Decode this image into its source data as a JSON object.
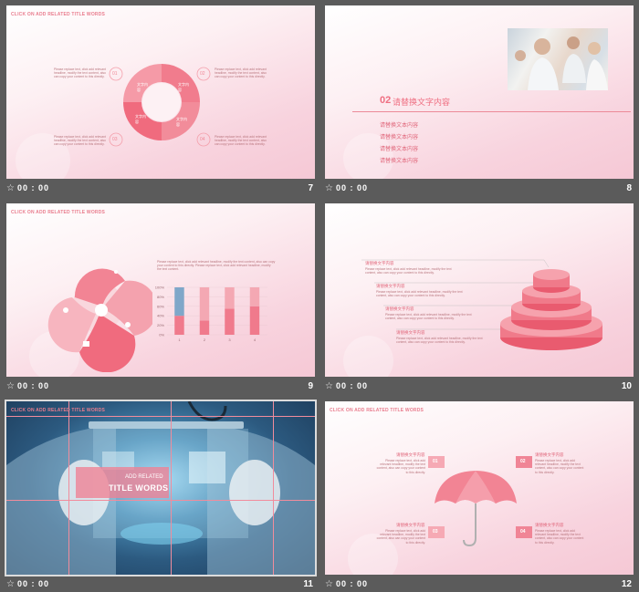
{
  "slides": [
    {
      "num": "7",
      "time": "00 : 00",
      "header": "CLICK ON ADD RELATED TITLE WORDS",
      "markers": [
        "01",
        "02",
        "03",
        "04"
      ],
      "segment_text": [
        "文字内容",
        "文字内容",
        "文字内容",
        "文字内容"
      ],
      "desc": "Please replace text, click add relevant headline, modify the text content, also can copy your content to this directly."
    },
    {
      "num": "8",
      "time": "00 : 00",
      "title_num": "02",
      "title": "请替换文字内容",
      "items": [
        "请替换文本内容",
        "请替换文本内容",
        "请替换文本内容",
        "请替换文本内容"
      ]
    },
    {
      "num": "9",
      "time": "00 : 00",
      "header": "CLICK ON ADD RELATED TITLE WORDS",
      "desc": "Please replace text, click add relevant headline, modify the text content, also can copy your content to this directly. Please replace text, click add relevant headline, modify the text content.",
      "chart_data": {
        "type": "bar",
        "categories": [
          "1",
          "2",
          "3",
          "4"
        ],
        "ylim": [
          0,
          100
        ],
        "yticks": [
          "0%",
          "20%",
          "40%",
          "60%",
          "80%",
          "100%"
        ],
        "series": [
          {
            "values": [
              40,
              30,
              55,
              60
            ]
          },
          {
            "values": [
              60,
              70,
              45,
              40
            ]
          }
        ]
      }
    },
    {
      "num": "10",
      "time": "00 : 00",
      "items": [
        {
          "title": "请替换文字内容",
          "text": "Please replace text, click add relevant headline, modify the text content, also can copy your content to this directly."
        },
        {
          "title": "请替换文字内容",
          "text": "Please replace text, click add relevant headline, modify the text content, also can copy your content to this directly."
        },
        {
          "title": "请替换文字内容",
          "text": "Please replace text, click add relevant headline, modify the text content, also can copy your content to this directly."
        },
        {
          "title": "请替换文字内容",
          "text": "Please replace text, click add relevant headline, modify the text content, also can copy your content to this directly."
        }
      ]
    },
    {
      "num": "11",
      "time": "00 : 00",
      "header": "CLICK ON ADD RELATED TITLE WORDS",
      "overlay_top": "ADD RELATED",
      "overlay_main": "TITLE WORDS"
    },
    {
      "num": "12",
      "time": "00 : 00",
      "header": "CLICK ON ADD RELATED TITLE WORDS",
      "markers": [
        "01",
        "02",
        "03",
        "04"
      ],
      "titles": [
        "请替换文字内容",
        "请替换文字内容",
        "请替换文字内容",
        "请替换文字内容"
      ],
      "desc": "Please replace text, click add relevant headline, modify the text content, also can copy your content to this directly."
    }
  ],
  "colors": {
    "accent": "#e97d8e",
    "pink_dark": "#f06b7e",
    "pink_light": "#f6a9b4"
  }
}
